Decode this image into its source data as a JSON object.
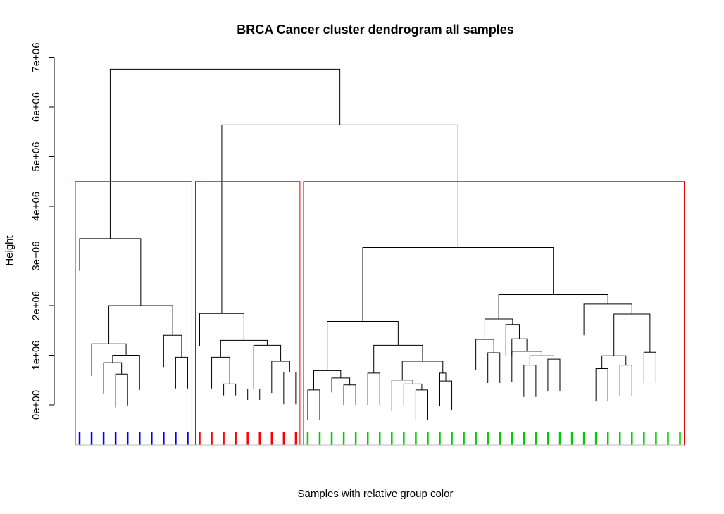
{
  "chart_data": {
    "type": "dendrogram",
    "title": "BRCA Cancer cluster dendrogram all samples",
    "xlabel": "Samples with relative group color",
    "ylabel": "Height",
    "yticks": [
      "0e+00",
      "1e+06",
      "2e+06",
      "3e+06",
      "4e+06",
      "5e+06",
      "6e+06",
      "7e+06"
    ],
    "ylim": [
      0,
      7000000
    ],
    "cut_height": 4500000,
    "leaf_count": 51,
    "clusters": [
      {
        "leaf_start": 0,
        "leaf_end": 9,
        "color": "#0000ff"
      },
      {
        "leaf_start": 10,
        "leaf_end": 18,
        "color": "#ff0000"
      },
      {
        "leaf_start": 19,
        "leaf_end": 50,
        "color": "#00cc00"
      }
    ],
    "merges": [
      {
        "x1": 0.98,
        "x2": 2.88,
        "h": 2700000
      },
      {
        "x1": 3.9,
        "x2": 5.55,
        "h": 1200000
      },
      {
        "x1": 1.98,
        "x2": 4.73,
        "h": 2000000
      },
      {
        "x1": 1.0,
        "x2": 3.35,
        "h": 3350000
      },
      {
        "x1": 7.2,
        "x2": 9.4,
        "h": 1400000
      }
    ]
  }
}
